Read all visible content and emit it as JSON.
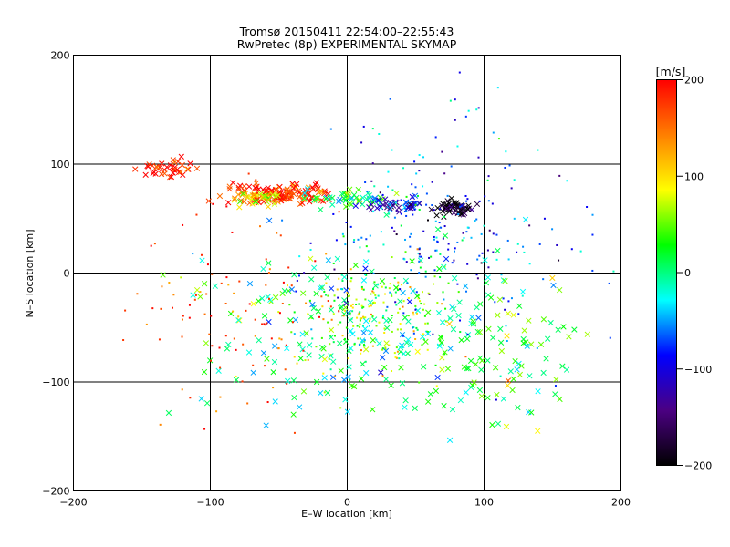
{
  "chart_data": {
    "type": "scatter",
    "title": "Tromsø 20150411 22:54:00–22:55:43",
    "subtitle": "RwPretec (8p) EXPERIMENTAL SKYMAP",
    "xlabel": "E–W location [km]",
    "ylabel": "N–S location [km]",
    "xlim": [
      -200,
      200
    ],
    "ylim": [
      -200,
      200
    ],
    "xticks": [
      -200,
      -100,
      0,
      100,
      200
    ],
    "yticks": [
      -200,
      -100,
      0,
      100,
      200
    ],
    "grid": true,
    "markers": [
      "x",
      "dot"
    ],
    "color_variable": "radial velocity",
    "colorbar": {
      "label": "[m/s]",
      "range": [
        -200,
        200
      ],
      "ticks": [
        200,
        100,
        0,
        -100,
        -200
      ],
      "colormap": [
        "#000000",
        "#4b0082",
        "#0000ff",
        "#00ffff",
        "#00ff00",
        "#ffff00",
        "#ff7f00",
        "#ff0000"
      ]
    },
    "clusters": [
      {
        "center": [
          -50,
          72
        ],
        "spread": [
          30,
          8
        ],
        "velocity": 180,
        "count": 140,
        "marker": "x"
      },
      {
        "center": [
          -130,
          95
        ],
        "spread": [
          18,
          8
        ],
        "velocity": 195,
        "count": 40,
        "marker": "x"
      },
      {
        "center": [
          -65,
          68
        ],
        "spread": [
          12,
          6
        ],
        "velocity": 100,
        "count": 45,
        "marker": "x"
      },
      {
        "center": [
          5,
          68
        ],
        "spread": [
          22,
          7
        ],
        "velocity": 10,
        "count": 55,
        "marker": "x"
      },
      {
        "center": [
          35,
          62
        ],
        "spread": [
          18,
          6
        ],
        "velocity": -110,
        "count": 45,
        "marker": "x"
      },
      {
        "center": [
          78,
          60
        ],
        "spread": [
          12,
          6
        ],
        "velocity": -200,
        "count": 55,
        "marker": "x"
      },
      {
        "center": [
          20,
          -40
        ],
        "spread": [
          45,
          45
        ],
        "velocity": 60,
        "count": 230,
        "marker": "dot"
      },
      {
        "center": [
          0,
          -60
        ],
        "spread": [
          90,
          70
        ],
        "velocity": 0,
        "count": 220,
        "marker": "x"
      },
      {
        "center": [
          60,
          40
        ],
        "spread": [
          80,
          90
        ],
        "velocity": -60,
        "count": 260,
        "marker": "dot"
      },
      {
        "center": [
          -80,
          -30
        ],
        "spread": [
          60,
          80
        ],
        "velocity": 170,
        "count": 110,
        "marker": "dot"
      },
      {
        "center": [
          120,
          -80
        ],
        "spread": [
          50,
          60
        ],
        "velocity": 30,
        "count": 90,
        "marker": "x"
      }
    ]
  }
}
